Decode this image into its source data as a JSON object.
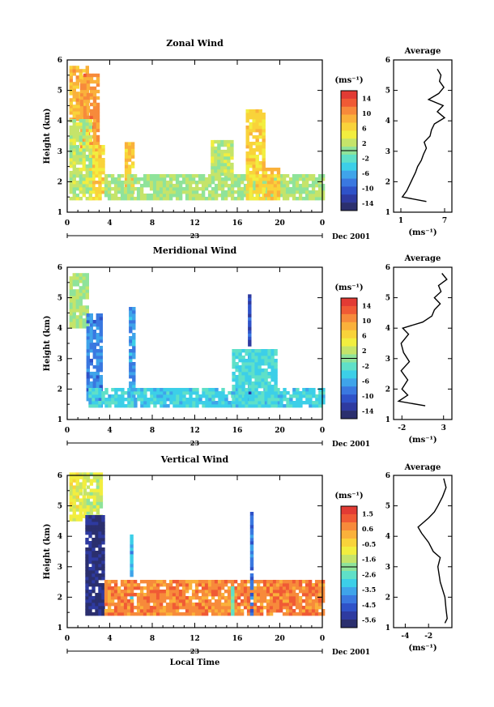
{
  "colors": {
    "scale": [
      "#2b2f6e",
      "#2e3aa0",
      "#2f52c8",
      "#3a78e0",
      "#3fa4ea",
      "#3ccfe8",
      "#5fe0c8",
      "#8fe39a",
      "#c5e46a",
      "#f2ee3f",
      "#f9d33a",
      "#fab13b",
      "#f78a3b",
      "#f05a35",
      "#e23b34"
    ]
  },
  "panels": [
    {
      "id": "zonal",
      "title": "Zonal Wind",
      "ylabel": "Height (km)",
      "yticks": [
        "1",
        "2",
        "3",
        "4",
        "5",
        "6"
      ],
      "xticks": [
        "0",
        "4",
        "8",
        "12",
        "16",
        "20",
        "0"
      ],
      "day_label": "23",
      "date_label": "Dec 2001",
      "xlabel": "",
      "units_label": "(ms⁻¹)",
      "colorbar_ticks": [
        "14",
        "10",
        "6",
        "2",
        "-2",
        "-6",
        "-10",
        "-14"
      ],
      "avg_title": "Average",
      "avg_xticks": [
        "1",
        "7"
      ],
      "avg_xlabel": "(ms⁻¹)",
      "avg_yticks": [
        "1",
        "2",
        "3",
        "4",
        "5",
        "6"
      ]
    },
    {
      "id": "meridional",
      "title": "Meridional Wind",
      "ylabel": "Height (km)",
      "yticks": [
        "1",
        "2",
        "3",
        "4",
        "5",
        "6"
      ],
      "xticks": [
        "0",
        "4",
        "8",
        "12",
        "16",
        "20",
        "0"
      ],
      "day_label": "23",
      "date_label": "Dec 2001",
      "xlabel": "",
      "units_label": "(ms⁻¹)",
      "colorbar_ticks": [
        "14",
        "10",
        "6",
        "2",
        "-2",
        "-6",
        "-10",
        "-14"
      ],
      "avg_title": "Average",
      "avg_xticks": [
        "-2",
        "3"
      ],
      "avg_xlabel": "(ms⁻¹)",
      "avg_yticks": [
        "1",
        "2",
        "3",
        "4",
        "5",
        "6"
      ]
    },
    {
      "id": "vertical",
      "title": "Vertical Wind",
      "ylabel": "Height (km)",
      "yticks": [
        "1",
        "2",
        "3",
        "4",
        "5",
        "6"
      ],
      "xticks": [
        "0",
        "4",
        "8",
        "12",
        "16",
        "20",
        "0"
      ],
      "day_label": "23",
      "date_label": "Dec 2001",
      "xlabel": "Local Time",
      "units_label": "(ms⁻¹)",
      "colorbar_ticks": [
        "1.5",
        "0.6",
        "-0.5",
        "-1.6",
        "-2.6",
        "-3.5",
        "-4.5",
        "-5.6"
      ],
      "avg_title": "Average",
      "avg_xticks": [
        "-4",
        "-2"
      ],
      "avg_xlabel": "(ms⁻¹)",
      "avg_yticks": [
        "1",
        "2",
        "3",
        "4",
        "5",
        "6"
      ]
    }
  ],
  "chart_data": [
    {
      "type": "heatmap",
      "title": "Zonal Wind",
      "ylabel": "Height (km)",
      "ylim": [
        1,
        6
      ],
      "xlim": [
        0,
        24
      ],
      "colorbar": {
        "range": [
          -16,
          16
        ]
      },
      "features": [
        {
          "kind": "region",
          "t": [
            0.2,
            2.0
          ],
          "h": [
            4.0,
            5.8
          ],
          "value": 8
        },
        {
          "kind": "region",
          "t": [
            1.2,
            2.8
          ],
          "h": [
            3.0,
            5.5
          ],
          "value": 10
        },
        {
          "kind": "region",
          "t": [
            2.0,
            3.3
          ],
          "h": [
            1.4,
            3.2
          ],
          "value": 6
        },
        {
          "kind": "region",
          "t": [
            0.2,
            2.2
          ],
          "h": [
            1.4,
            4.0
          ],
          "value": 2
        },
        {
          "kind": "region",
          "t": [
            5.4,
            6.2
          ],
          "h": [
            1.6,
            3.3
          ],
          "value": 7
        },
        {
          "kind": "region",
          "t": [
            3.5,
            24.0
          ],
          "h": [
            1.4,
            2.2
          ],
          "value": 1
        },
        {
          "kind": "region",
          "t": [
            16.8,
            18.5
          ],
          "h": [
            1.4,
            4.3
          ],
          "value": 6
        },
        {
          "kind": "region",
          "t": [
            18.5,
            20.0
          ],
          "h": [
            1.4,
            2.4
          ],
          "value": 7
        },
        {
          "kind": "region",
          "t": [
            13.5,
            15.5
          ],
          "h": [
            2.2,
            3.3
          ],
          "value": 2
        }
      ],
      "average": {
        "x_range": [
          0,
          8
        ],
        "height": [
          1.35,
          1.5,
          1.7,
          1.9,
          2.1,
          2.3,
          2.5,
          2.7,
          2.9,
          3.1,
          3.3,
          3.5,
          3.7,
          3.9,
          4.1,
          4.3,
          4.5,
          4.7,
          4.9,
          5.1,
          5.3,
          5.5,
          5.7
        ],
        "value": [
          4.5,
          1.2,
          1.8,
          2.2,
          2.6,
          3.0,
          3.3,
          3.8,
          4.1,
          4.5,
          4.2,
          5.0,
          5.2,
          5.6,
          7.0,
          6.0,
          6.8,
          4.8,
          6.2,
          6.9,
          6.3,
          6.5,
          6.0
        ]
      }
    },
    {
      "type": "heatmap",
      "title": "Meridional Wind",
      "ylabel": "Height (km)",
      "ylim": [
        1,
        6
      ],
      "xlim": [
        0,
        24
      ],
      "colorbar": {
        "range": [
          -16,
          16
        ]
      },
      "features": [
        {
          "kind": "region",
          "t": [
            0.2,
            1.8
          ],
          "h": [
            4.0,
            5.8
          ],
          "value": 1
        },
        {
          "kind": "region",
          "t": [
            1.8,
            3.2
          ],
          "h": [
            1.4,
            4.4
          ],
          "value": -8
        },
        {
          "kind": "region",
          "t": [
            5.8,
            6.2
          ],
          "h": [
            1.4,
            4.6
          ],
          "value": -7
        },
        {
          "kind": "region",
          "t": [
            2.0,
            24.0
          ],
          "h": [
            1.4,
            2.0
          ],
          "value": -4
        },
        {
          "kind": "region",
          "t": [
            17.0,
            17.3
          ],
          "h": [
            1.6,
            5.1
          ],
          "value": -11
        },
        {
          "kind": "region",
          "t": [
            15.5,
            19.5
          ],
          "h": [
            1.4,
            3.3
          ],
          "value": -3
        }
      ],
      "average": {
        "x_range": [
          -3,
          4
        ],
        "height": [
          1.45,
          1.6,
          1.8,
          2.0,
          2.3,
          2.6,
          2.9,
          3.2,
          3.5,
          3.8,
          4.0,
          4.2,
          4.4,
          4.6,
          4.8,
          5.0,
          5.2,
          5.4,
          5.6,
          5.8
        ],
        "value": [
          0.8,
          -2.4,
          -1.3,
          -2.0,
          -1.3,
          -2.1,
          -1.1,
          -1.8,
          -2.1,
          -1.2,
          -1.9,
          0.5,
          1.6,
          1.9,
          2.6,
          1.9,
          2.7,
          2.4,
          3.4,
          2.8
        ]
      }
    },
    {
      "type": "heatmap",
      "title": "Vertical Wind",
      "ylabel": "Height (km)",
      "ylim": [
        1,
        6
      ],
      "xlim": [
        0,
        24
      ],
      "colorbar": {
        "range": [
          -6.5,
          2.0
        ]
      },
      "features": [
        {
          "kind": "region",
          "t": [
            0.2,
            1.5
          ],
          "h": [
            4.5,
            6.0
          ],
          "value": -1.2
        },
        {
          "kind": "region",
          "t": [
            1.5,
            3.3
          ],
          "h": [
            4.5,
            6.0
          ],
          "value": -1.6
        },
        {
          "kind": "region",
          "t": [
            1.7,
            3.3
          ],
          "h": [
            1.4,
            4.6
          ],
          "value": -6.0
        },
        {
          "kind": "region",
          "t": [
            5.9,
            6.2
          ],
          "h": [
            1.4,
            4.0
          ],
          "value": -3.8
        },
        {
          "kind": "region",
          "t": [
            3.5,
            24.0
          ],
          "h": [
            1.4,
            2.5
          ],
          "value": 0.6
        },
        {
          "kind": "region",
          "t": [
            15.4,
            15.7
          ],
          "h": [
            1.4,
            2.3
          ],
          "value": -2.6
        },
        {
          "kind": "region",
          "t": [
            17.2,
            17.5
          ],
          "h": [
            1.4,
            4.8
          ],
          "value": -4.5
        }
      ],
      "average": {
        "x_range": [
          -5,
          0
        ],
        "height": [
          1.15,
          1.3,
          1.6,
          2.0,
          2.5,
          3.0,
          3.3,
          3.5,
          3.8,
          4.1,
          4.3,
          4.6,
          4.8,
          5.0,
          5.3,
          5.6,
          5.9
        ],
        "value": [
          -0.6,
          -0.4,
          -0.5,
          -0.6,
          -1.0,
          -1.2,
          -1.0,
          -1.6,
          -2.0,
          -2.6,
          -2.9,
          -2.0,
          -1.5,
          -1.2,
          -0.8,
          -0.5,
          -0.7
        ]
      }
    }
  ]
}
